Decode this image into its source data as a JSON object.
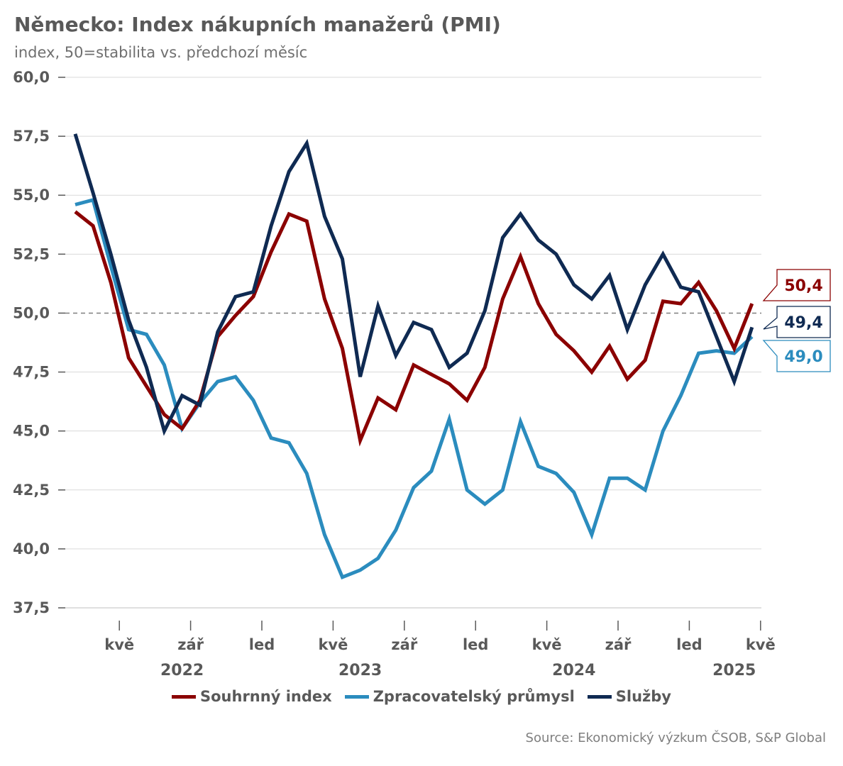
{
  "title": "Německo: Index nákupních manažerů (PMI)",
  "subtitle": "index, 50=stabilita vs. předchozí měsíc",
  "source": "Source: Ekonomický výzkum ČSOB, S&P Global",
  "chart_data": {
    "type": "line",
    "title": "Německo: Index nákupních manažerů (PMI)",
    "subtitle": "index, 50=stabilita vs. předchozí měsíc",
    "ylim": [
      37.5,
      60.0
    ],
    "yticks": [
      37.5,
      40.0,
      42.5,
      45.0,
      47.5,
      50.0,
      52.5,
      55.0,
      57.5,
      60.0
    ],
    "ytick_labels": [
      "37,5",
      "40,0",
      "42,5",
      "45,0",
      "47,5",
      "50,0",
      "52,5",
      "55,0",
      "57,5",
      "60,0"
    ],
    "reference_line": 50.0,
    "grid": true,
    "legend_position": "bottom",
    "x_start": "2022-03",
    "x_month_labels": [
      {
        "index": 2,
        "label": "kvě"
      },
      {
        "index": 6,
        "label": "zář"
      },
      {
        "index": 10,
        "label": "led"
      },
      {
        "index": 14,
        "label": "kvě"
      },
      {
        "index": 18,
        "label": "zář"
      },
      {
        "index": 22,
        "label": "led"
      },
      {
        "index": 26,
        "label": "kvě"
      },
      {
        "index": 30,
        "label": "zář"
      },
      {
        "index": 34,
        "label": "led"
      },
      {
        "index": 38,
        "label": "kvě"
      }
    ],
    "x_year_labels": [
      {
        "index": 6,
        "label": "2022"
      },
      {
        "index": 16,
        "label": "2023"
      },
      {
        "index": 28,
        "label": "2024"
      },
      {
        "index": 37,
        "label": "2025"
      }
    ],
    "series": [
      {
        "name": "Souhrnný index",
        "color": "#8b0000",
        "values": [
          54.3,
          53.7,
          51.3,
          48.1,
          46.9,
          45.7,
          45.1,
          46.3,
          49.0,
          49.9,
          50.7,
          52.6,
          54.2,
          53.9,
          50.6,
          48.5,
          44.6,
          46.4,
          45.9,
          47.8,
          47.4,
          47.0,
          46.3,
          47.7,
          50.6,
          52.4,
          50.4,
          49.1,
          48.4,
          47.5,
          48.6,
          47.2,
          48.0,
          50.5,
          50.4,
          51.3,
          50.1,
          48.5,
          50.4
        ],
        "end_label": "50,4"
      },
      {
        "name": "Zpracovatelský průmysl",
        "color": "#2b8cbe",
        "values": [
          54.6,
          54.8,
          52.0,
          49.3,
          49.1,
          47.8,
          45.1,
          46.2,
          47.1,
          47.3,
          46.3,
          44.7,
          44.5,
          43.2,
          40.6,
          38.8,
          39.1,
          39.6,
          40.8,
          42.6,
          43.3,
          45.5,
          42.5,
          41.9,
          42.5,
          45.4,
          43.5,
          43.2,
          42.4,
          40.6,
          43.0,
          43.0,
          42.5,
          45.0,
          46.5,
          48.3,
          48.4,
          48.3,
          49.0
        ],
        "end_label": "49,0"
      },
      {
        "name": "Služby",
        "color": "#0f2a52",
        "values": [
          57.6,
          55.1,
          52.5,
          49.7,
          47.7,
          45.0,
          46.5,
          46.1,
          49.2,
          50.7,
          50.9,
          53.7,
          56.0,
          57.2,
          54.1,
          52.3,
          47.3,
          50.3,
          48.2,
          49.6,
          49.3,
          47.7,
          48.3,
          50.1,
          53.2,
          54.2,
          53.1,
          52.5,
          51.2,
          50.6,
          51.6,
          49.3,
          51.2,
          52.5,
          51.1,
          50.9,
          49.0,
          47.1,
          49.4
        ],
        "end_label": "49,4"
      }
    ]
  }
}
